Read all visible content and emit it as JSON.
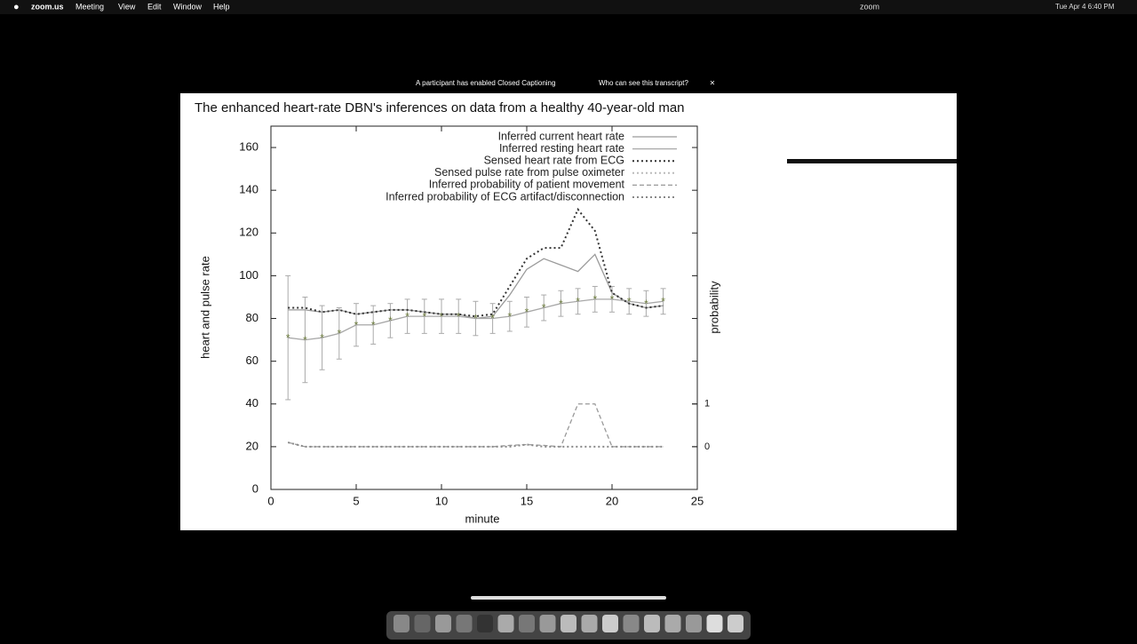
{
  "menubar": {
    "items": [
      "zoom.us",
      "Meeting",
      "View",
      "Edit",
      "Window",
      "Help"
    ],
    "app": "zoom",
    "clock": "Tue Apr 4  6:40 PM"
  },
  "banner": {
    "message": "A participant has enabled Closed Captioning",
    "link": "Who can see this transcript?"
  },
  "chart_data": {
    "type": "line",
    "title": "The enhanced heart-rate DBN's inferences on data from a healthy 40-year-old man",
    "x_label": "minute",
    "y_label": "heart and pulse rate",
    "y2_label": "probability",
    "x": [
      1,
      2,
      3,
      4,
      5,
      6,
      7,
      8,
      9,
      10,
      11,
      12,
      13,
      14,
      15,
      16,
      17,
      18,
      19,
      20,
      21,
      22,
      23
    ],
    "xlim": [
      0,
      25
    ],
    "xticks": [
      0,
      5,
      10,
      15,
      20,
      25
    ],
    "ylim": [
      0,
      170
    ],
    "yticks": [
      0,
      20,
      40,
      60,
      80,
      100,
      120,
      140,
      160
    ],
    "y2lim": [
      -1,
      7.5
    ],
    "y2ticks": [
      0,
      1
    ],
    "series": [
      {
        "name": "Inferred current heart rate",
        "color": "#9a9a9a",
        "style": "solid",
        "values": [
          84,
          84,
          83,
          84,
          82,
          83,
          84,
          84,
          83,
          82,
          82,
          80,
          81,
          91,
          103,
          108,
          105,
          102,
          110,
          92,
          87,
          85,
          86
        ]
      },
      {
        "name": "Inferred resting heart rate",
        "color": "#a8a8a8",
        "style": "solid",
        "marker": "#6b7a3c",
        "values": [
          71,
          70,
          71,
          73,
          77,
          77,
          79,
          81,
          81,
          81,
          81,
          80,
          80,
          81,
          83,
          85,
          87,
          88,
          89,
          89,
          88,
          87,
          88
        ],
        "errors": [
          29,
          20,
          15,
          12,
          10,
          9,
          8,
          8,
          8,
          8,
          8,
          8,
          7,
          7,
          7,
          6,
          6,
          6,
          6,
          6,
          6,
          6,
          6
        ]
      },
      {
        "name": "Sensed heart rate from ECG",
        "color": "#333333",
        "style": "dotted",
        "values": [
          85,
          85,
          83,
          84,
          82,
          83,
          84,
          84,
          83,
          82,
          82,
          81,
          82,
          95,
          108,
          113,
          113,
          131,
          121,
          92,
          87,
          85,
          86
        ]
      },
      {
        "name": "Sensed pulse rate from pulse oximeter",
        "color": "#bbbbbb",
        "style": "dotted",
        "values": [
          null,
          null,
          null,
          null,
          null,
          null,
          null,
          null,
          null,
          null,
          null,
          null,
          null,
          null,
          null,
          null,
          null,
          null,
          null,
          null,
          null,
          null,
          null
        ]
      },
      {
        "name": "Inferred probability of patient movement",
        "color": "#999999",
        "style": "dashed",
        "axis": "y2",
        "values": [
          0.1,
          0,
          0,
          0,
          0,
          0,
          0,
          0,
          0,
          0,
          0,
          0,
          0,
          0.03,
          0.05,
          0.03,
          0,
          1,
          1,
          0,
          0,
          0,
          0
        ]
      },
      {
        "name": "Inferred probability of ECG artifact/disconnection",
        "color": "#888888",
        "style": "dotted",
        "axis": "y2",
        "values": [
          0.1,
          0,
          0,
          0,
          0,
          0,
          0,
          0,
          0,
          0,
          0,
          0,
          0,
          0,
          0.05,
          0,
          0,
          0,
          0,
          0,
          0,
          0,
          0
        ]
      }
    ]
  }
}
